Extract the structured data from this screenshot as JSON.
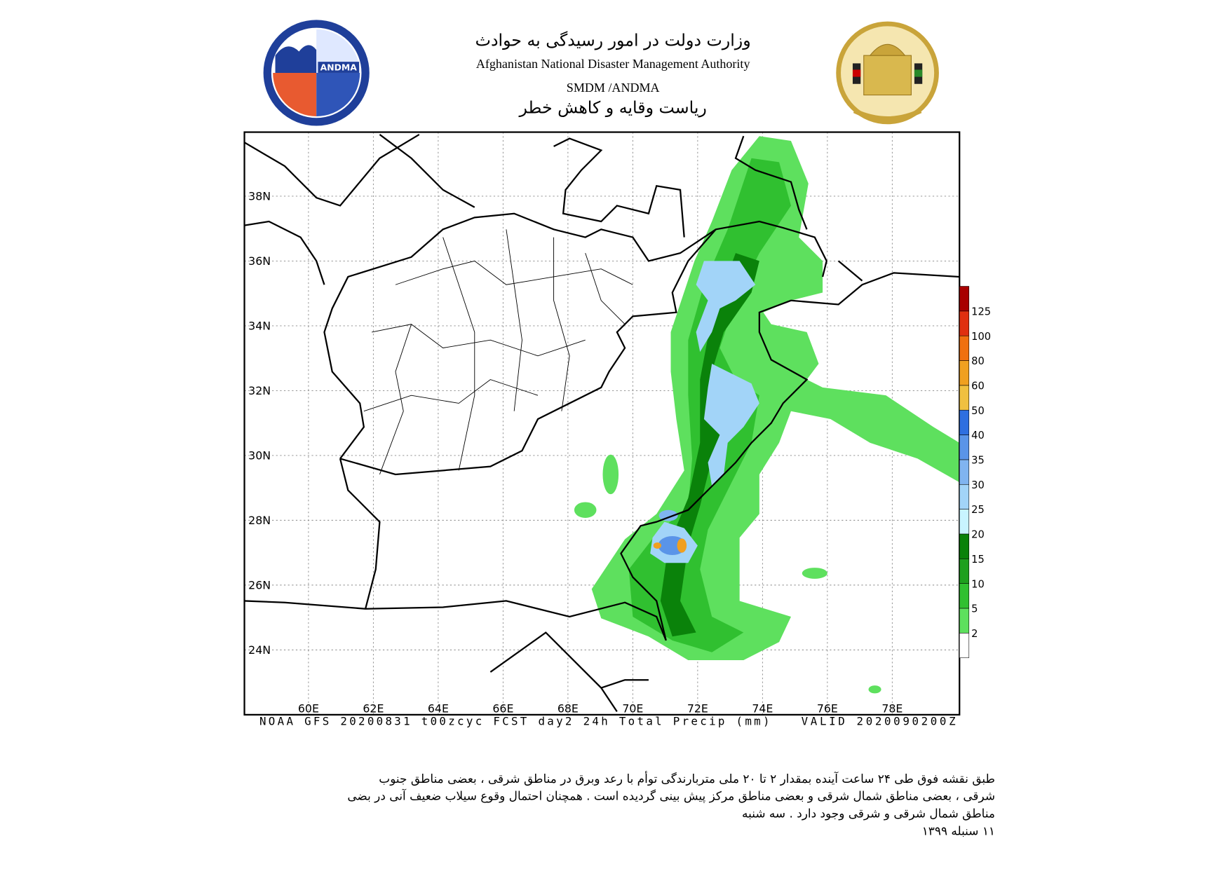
{
  "header": {
    "title_fa": "وزارت دولت در امور رسیدگی به حوادث",
    "title_en": "Afghanistan National Disaster Management Authority",
    "subtitle": "SMDM /ANDMA",
    "subtitle_fa": "ریاست وقایه و کاهش خطر",
    "logo_text": "ANDMA"
  },
  "map": {
    "lat_labels": [
      "38N",
      "36N",
      "34N",
      "32N",
      "30N",
      "28N",
      "26N",
      "24N"
    ],
    "lon_labels": [
      "60E",
      "62E",
      "64E",
      "66E",
      "68E",
      "70E",
      "72E",
      "74E",
      "76E",
      "78E"
    ],
    "caption": "NOAA GFS 20200831 t00zcyc FCST day2 24h Total Precip (mm)",
    "valid": "VALID 2020090200Z",
    "colorbar": {
      "labels": [
        2,
        5,
        10,
        15,
        20,
        25,
        30,
        35,
        40,
        50,
        60,
        80,
        100,
        125
      ],
      "colors": [
        "#ffffff",
        "#5ee05e",
        "#30c030",
        "#1ea01e",
        "#0a820a",
        "#c8f4ff",
        "#a2d4f8",
        "#80b4f0",
        "#5a94e8",
        "#2f6fe0",
        "#f0c040",
        "#f0a020",
        "#f07010",
        "#e03010",
        "#a80000"
      ]
    }
  },
  "description": [
    "طبق نقشه فوق طی ۲۴ ساعت آینده بمقدار ۲ تا ۲۰ ملی متربارندگی توأم با رعد وبرق در مناطق شرقی ، بعضی مناطق جنوب",
    "شرقی ، بعضی مناطق شمال شرقی و بعضی مناطق مرکز پیش بینی گردیده است . همچنان احتمال وقوع سیلاب ضعیف آنی در بضی",
    "مناطق شمال شرقی و شرقی وجود دارد . سه شنبه",
    "۱۱ سنبله ۱۳۹۹"
  ]
}
